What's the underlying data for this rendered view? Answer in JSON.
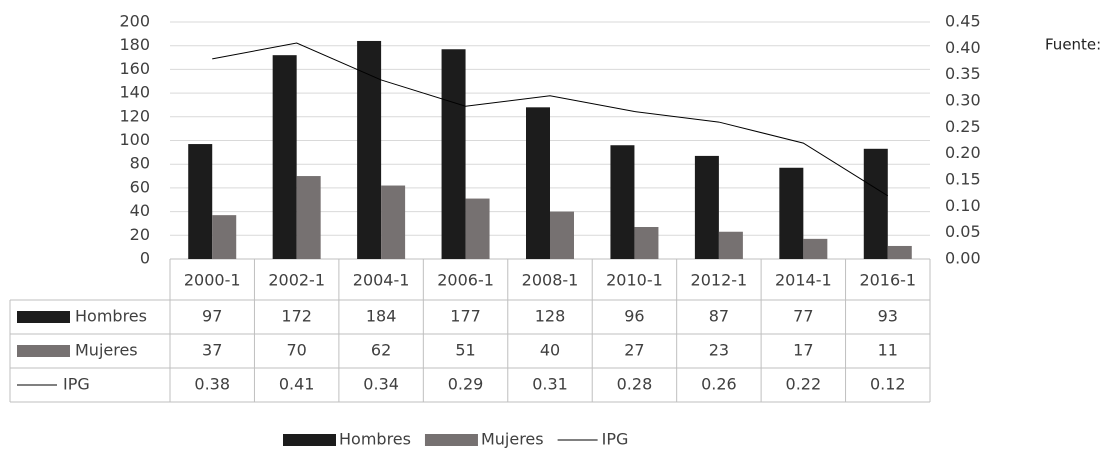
{
  "chart_data": {
    "type": "bar",
    "categories": [
      "2000-1",
      "2002-1",
      "2004-1",
      "2006-1",
      "2008-1",
      "2010-1",
      "2012-1",
      "2014-1",
      "2016-1"
    ],
    "series": [
      {
        "name": "Hombres",
        "color": "#1c1c1c",
        "values": [
          97,
          172,
          184,
          177,
          128,
          96,
          87,
          77,
          93
        ]
      },
      {
        "name": "Mujeres",
        "color": "#767171",
        "values": [
          37,
          70,
          62,
          51,
          40,
          27,
          23,
          17,
          11
        ]
      },
      {
        "name": "IPG",
        "color": "#000000",
        "type": "line",
        "axis": "y2",
        "values": [
          0.38,
          0.41,
          0.34,
          0.29,
          0.31,
          0.28,
          0.26,
          0.22,
          0.12
        ]
      }
    ],
    "ylim": [
      0,
      200
    ],
    "yticks": [
      0,
      20,
      40,
      60,
      80,
      100,
      120,
      140,
      160,
      180,
      200
    ],
    "y2lim": [
      0,
      0.45
    ],
    "y2ticks": [
      {
        "value": 0,
        "label": "0.00"
      },
      {
        "value": 0.05,
        "label": "0.05"
      },
      {
        "value": 0.1,
        "label": "0.10"
      },
      {
        "value": 0.15,
        "label": "0.15"
      },
      {
        "value": 0.2,
        "label": "0.20"
      },
      {
        "value": 0.25,
        "label": "0.25"
      },
      {
        "value": 0.3,
        "label": "0.30"
      },
      {
        "value": 0.35,
        "label": "0.35"
      },
      {
        "value": 0.4,
        "label": "0.40"
      },
      {
        "value": 0.45,
        "label": "0.45"
      }
    ],
    "grid": true,
    "annotation": "Fuente:"
  }
}
